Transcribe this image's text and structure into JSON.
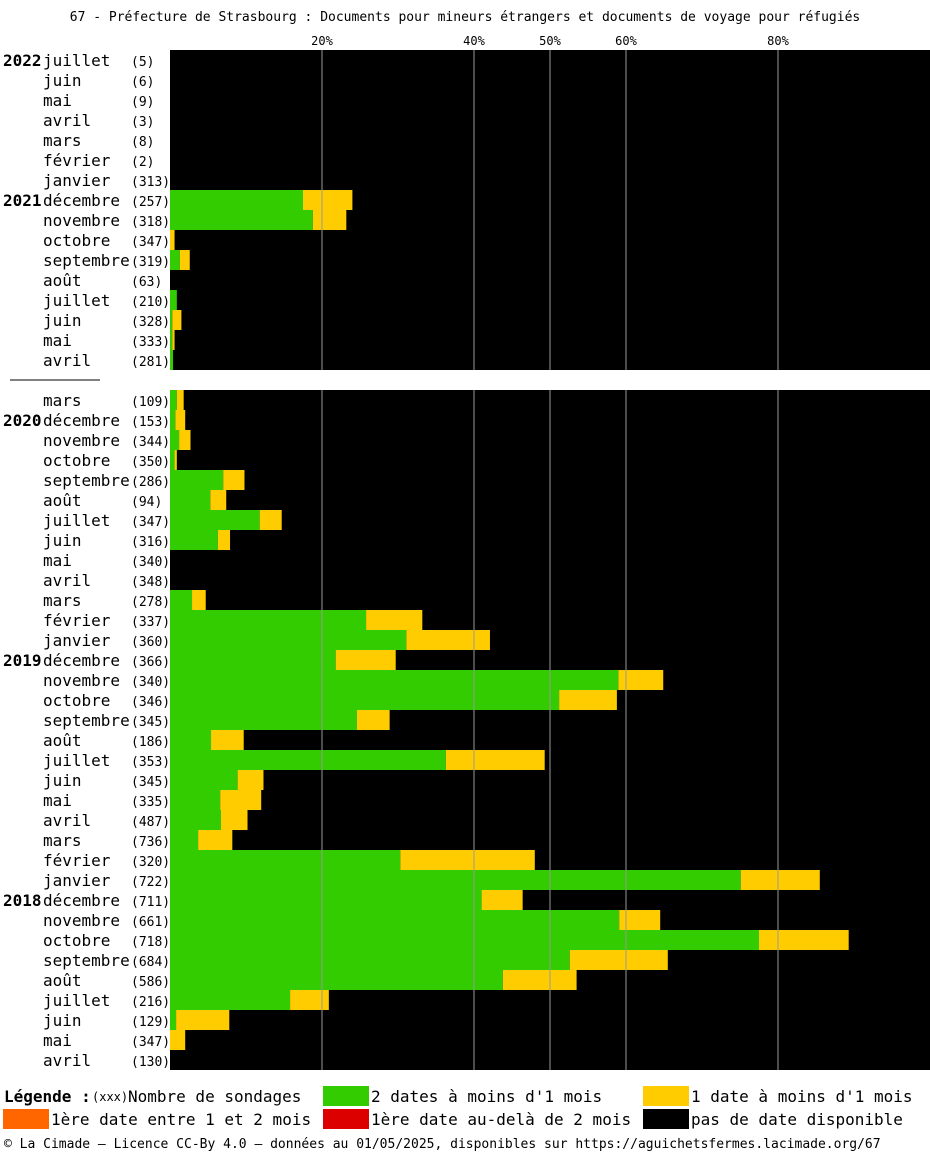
{
  "title": "67 - Préfecture de Strasbourg : Documents pour mineurs étrangers et documents de voyage pour réfugiés",
  "chart_data": {
    "type": "bar",
    "orientation": "horizontal",
    "stacked": true,
    "x_ticks": [
      20,
      40,
      50,
      60,
      80
    ],
    "x_tick_labels": [
      "20%",
      "40%",
      "50%",
      "60%",
      "80%"
    ],
    "xlim": [
      0,
      100
    ],
    "grid": true,
    "legend_position": "bottom",
    "colors": {
      "green": "#33cc00",
      "yellow": "#ffcc00",
      "orange": "#ff6600",
      "red": "#dd0000",
      "black": "#000000"
    },
    "series": [
      {
        "name": "2 dates à moins d'1 mois",
        "color": "#33cc00"
      },
      {
        "name": "1 date à moins d'1 mois",
        "color": "#ffcc00"
      }
    ],
    "gap_after_index": 15,
    "rows": [
      {
        "year": "2022",
        "month": "juillet",
        "count": "(5)",
        "green": 0,
        "yellow": 0
      },
      {
        "year": "",
        "month": "juin",
        "count": "(6)",
        "green": 0,
        "yellow": 0
      },
      {
        "year": "",
        "month": "mai",
        "count": "(9)",
        "green": 0,
        "yellow": 0
      },
      {
        "year": "",
        "month": "avril",
        "count": "(3)",
        "green": 0,
        "yellow": 0
      },
      {
        "year": "",
        "month": "mars",
        "count": "(8)",
        "green": 0,
        "yellow": 0
      },
      {
        "year": "",
        "month": "février",
        "count": "(2)",
        "green": 0,
        "yellow": 0
      },
      {
        "year": "",
        "month": "janvier",
        "count": "(313)",
        "green": 0,
        "yellow": 0
      },
      {
        "year": "2021",
        "month": "décembre",
        "count": "(257)",
        "green": 17.5,
        "yellow": 6.5
      },
      {
        "year": "",
        "month": "novembre",
        "count": "(318)",
        "green": 18.8,
        "yellow": 4.4
      },
      {
        "year": "",
        "month": "octobre",
        "count": "(347)",
        "green": 0,
        "yellow": 0.6
      },
      {
        "year": "",
        "month": "septembre",
        "count": "(319)",
        "green": 1.3,
        "yellow": 1.3
      },
      {
        "year": "",
        "month": "août",
        "count": "(63)",
        "green": 0,
        "yellow": 0
      },
      {
        "year": "",
        "month": "juillet",
        "count": "(210)",
        "green": 0.9,
        "yellow": 0
      },
      {
        "year": "",
        "month": "juin",
        "count": "(328)",
        "green": 0.3,
        "yellow": 1.2
      },
      {
        "year": "",
        "month": "mai",
        "count": "(333)",
        "green": 0.3,
        "yellow": 0.3
      },
      {
        "year": "",
        "month": "avril",
        "count": "(281)",
        "green": 0.4,
        "yellow": 0
      },
      {
        "year": "",
        "month": "mars",
        "count": "(109)",
        "green": 0.9,
        "yellow": 0.9
      },
      {
        "year": "2020",
        "month": "décembre",
        "count": "(153)",
        "green": 0.7,
        "yellow": 1.3
      },
      {
        "year": "",
        "month": "novembre",
        "count": "(344)",
        "green": 1.2,
        "yellow": 1.5
      },
      {
        "year": "",
        "month": "octobre",
        "count": "(350)",
        "green": 0.6,
        "yellow": 0.3
      },
      {
        "year": "",
        "month": "septembre",
        "count": "(286)",
        "green": 7.0,
        "yellow": 2.8
      },
      {
        "year": "",
        "month": "août",
        "count": "(94)",
        "green": 5.3,
        "yellow": 2.1
      },
      {
        "year": "",
        "month": "juillet",
        "count": "(347)",
        "green": 11.8,
        "yellow": 2.9
      },
      {
        "year": "",
        "month": "juin",
        "count": "(316)",
        "green": 6.3,
        "yellow": 1.6
      },
      {
        "year": "",
        "month": "mai",
        "count": "(340)",
        "green": 0,
        "yellow": 0
      },
      {
        "year": "",
        "month": "avril",
        "count": "(348)",
        "green": 0,
        "yellow": 0
      },
      {
        "year": "",
        "month": "mars",
        "count": "(278)",
        "green": 2.9,
        "yellow": 1.8
      },
      {
        "year": "",
        "month": "février",
        "count": "(337)",
        "green": 25.8,
        "yellow": 7.4
      },
      {
        "year": "",
        "month": "janvier",
        "count": "(360)",
        "green": 31.1,
        "yellow": 11.0
      },
      {
        "year": "2019",
        "month": "décembre",
        "count": "(366)",
        "green": 21.8,
        "yellow": 7.9
      },
      {
        "year": "",
        "month": "novembre",
        "count": "(340)",
        "green": 59.0,
        "yellow": 5.9
      },
      {
        "year": "",
        "month": "octobre",
        "count": "(346)",
        "green": 51.2,
        "yellow": 7.6
      },
      {
        "year": "",
        "month": "septembre",
        "count": "(345)",
        "green": 24.6,
        "yellow": 4.3
      },
      {
        "year": "",
        "month": "août",
        "count": "(186)",
        "green": 5.4,
        "yellow": 4.3
      },
      {
        "year": "",
        "month": "juillet",
        "count": "(353)",
        "green": 36.3,
        "yellow": 13.0
      },
      {
        "year": "",
        "month": "juin",
        "count": "(345)",
        "green": 8.9,
        "yellow": 3.4
      },
      {
        "year": "",
        "month": "mai",
        "count": "(335)",
        "green": 6.6,
        "yellow": 5.4
      },
      {
        "year": "",
        "month": "avril",
        "count": "(487)",
        "green": 6.7,
        "yellow": 3.5
      },
      {
        "year": "",
        "month": "mars",
        "count": "(736)",
        "green": 3.7,
        "yellow": 4.5
      },
      {
        "year": "",
        "month": "février",
        "count": "(320)",
        "green": 30.3,
        "yellow": 17.7
      },
      {
        "year": "",
        "month": "janvier",
        "count": "(722)",
        "green": 75.1,
        "yellow": 10.4
      },
      {
        "year": "2018",
        "month": "décembre",
        "count": "(711)",
        "green": 41.0,
        "yellow": 5.4
      },
      {
        "year": "",
        "month": "novembre",
        "count": "(661)",
        "green": 59.1,
        "yellow": 5.4
      },
      {
        "year": "",
        "month": "octobre",
        "count": "(718)",
        "green": 77.5,
        "yellow": 11.8
      },
      {
        "year": "",
        "month": "septembre",
        "count": "(684)",
        "green": 52.6,
        "yellow": 12.9
      },
      {
        "year": "",
        "month": "août",
        "count": "(586)",
        "green": 43.8,
        "yellow": 9.7
      },
      {
        "year": "",
        "month": "juillet",
        "count": "(216)",
        "green": 15.8,
        "yellow": 5.1
      },
      {
        "year": "",
        "month": "juin",
        "count": "(129)",
        "green": 0.8,
        "yellow": 7.0
      },
      {
        "year": "",
        "month": "mai",
        "count": "(347)",
        "green": 0,
        "yellow": 2.0
      },
      {
        "year": "",
        "month": "avril",
        "count": "(130)",
        "green": 0,
        "yellow": 0
      }
    ]
  },
  "legend": {
    "title": "Légende :",
    "count_marker": "(xxx)",
    "count_label": "Nombre de sondages",
    "items": [
      {
        "label": "2 dates à moins d'1 mois",
        "color": "#33cc00"
      },
      {
        "label": "1 date à moins d'1 mois",
        "color": "#ffcc00"
      },
      {
        "label": "1ère date entre 1 et 2 mois",
        "color": "#ff6600"
      },
      {
        "label": "1ère date au-delà de 2 mois",
        "color": "#dd0000"
      },
      {
        "label": "pas de date disponible",
        "color": "#000000"
      }
    ]
  },
  "footer": "© La Cimade — Licence CC-By 4.0 — données au 01/05/2025, disponibles sur https://aguichetsfermes.lacimade.org/67"
}
